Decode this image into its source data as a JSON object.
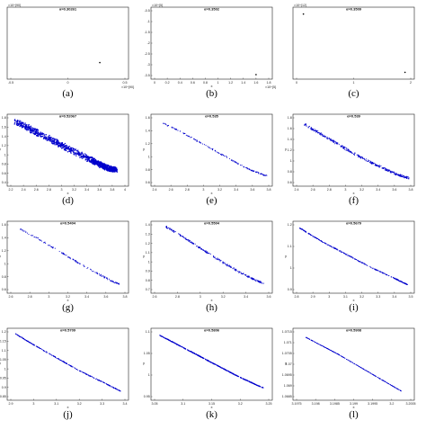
{
  "figure": {
    "panels": [
      {
        "id": "a",
        "caption": "(a)",
        "title": "α=0.30261",
        "exp_y": "×10^{90}",
        "exp_x": "×10^{90}",
        "xlabel": "",
        "ylabel": "",
        "xticks": [
          "-0.5",
          "0",
          "0.5"
        ],
        "yticks": []
      },
      {
        "id": "b",
        "caption": "(b)",
        "title": "α=0.3502",
        "exp_y": "×10^{5}",
        "exp_x": "×10^{5}",
        "xlabel": "x",
        "ylabel": "",
        "xticks": [
          "0",
          "0.2",
          "0.4",
          "0.6",
          "0.8",
          "1",
          "1.2",
          "1.4",
          "1.6",
          "1.8"
        ],
        "yticks": [
          "-0.5",
          "-1",
          "-1.5",
          "-2",
          "-2.5",
          "-3",
          "-3.5"
        ]
      },
      {
        "id": "c",
        "caption": "(c)",
        "title": "α=0.3509",
        "exp_y": "×10^{12}",
        "exp_x": "",
        "xlabel": "",
        "ylabel": "",
        "xticks": [
          "0",
          "1",
          "2"
        ],
        "yticks": []
      },
      {
        "id": "d",
        "caption": "(d)",
        "title": "α=0.52067",
        "exp_y": "",
        "exp_x": "",
        "xlabel": "x",
        "ylabel": "y",
        "xticks": [
          "2.2",
          "2.4",
          "2.6",
          "2.8",
          "3",
          "3.2",
          "3.4",
          "3.6",
          "3.8",
          "4"
        ],
        "yticks": [
          "1.8",
          "1.6",
          "1.4",
          "1.2",
          "1",
          "0.8",
          "0.6",
          "0.4"
        ]
      },
      {
        "id": "e",
        "caption": "(e)",
        "title": "α=0.535",
        "exp_y": "",
        "exp_x": "",
        "xlabel": "x",
        "ylabel": "y",
        "xticks": [
          "2.4",
          "2.6",
          "2.8",
          "3",
          "3.2",
          "3.4",
          "3.6",
          "3.8"
        ],
        "yticks": [
          "1.6",
          "1.4",
          "1.2",
          "1",
          "0.8",
          "0.6"
        ]
      },
      {
        "id": "f",
        "caption": "(f)",
        "title": "α=0.539",
        "exp_y": "",
        "exp_x": "",
        "xlabel": "x",
        "ylabel": "y",
        "xticks": [
          "2.4",
          "2.6",
          "2.8",
          "3",
          "3.2",
          "3.4",
          "3.6",
          "3.8"
        ],
        "yticks": [
          "1.8",
          "1.6",
          "1.4",
          "1.2",
          "1",
          "0.8",
          "0.6"
        ]
      },
      {
        "id": "g",
        "caption": "(g)",
        "title": "α=0.5404",
        "exp_y": "",
        "exp_x": "",
        "xlabel": "x",
        "ylabel": "y",
        "xticks": [
          "2.6",
          "2.8",
          "3",
          "3.2",
          "3.4",
          "3.6",
          "3.8"
        ],
        "yticks": [
          "1.6",
          "1.4",
          "1.2",
          "1",
          "0.8",
          "0.6"
        ]
      },
      {
        "id": "h",
        "caption": "(h)",
        "title": "α=0.5504",
        "exp_y": "",
        "exp_x": "",
        "xlabel": "x",
        "ylabel": "y",
        "xticks": [
          "2.6",
          "2.8",
          "3",
          "3.2",
          "3.4",
          "3.6"
        ],
        "yticks": [
          "1.4",
          "1.3",
          "1.2",
          "1.1",
          "1",
          "0.9",
          "0.8",
          "0.7"
        ]
      },
      {
        "id": "i",
        "caption": "(i)",
        "title": "α=0.5679",
        "exp_y": "",
        "exp_x": "",
        "xlabel": "x",
        "ylabel": "y",
        "xticks": [
          "2.8",
          "2.9",
          "3",
          "3.1",
          "3.2",
          "3.3",
          "3.4",
          "3.5"
        ],
        "yticks": [
          "1.2",
          "1.1",
          "1",
          "0.9"
        ]
      },
      {
        "id": "j",
        "caption": "(j)",
        "title": "α=0.5709",
        "exp_y": "",
        "exp_x": "",
        "xlabel": "x",
        "ylabel": "y",
        "xticks": [
          "2.9",
          "3",
          "3.1",
          "3.2",
          "3.3",
          "3.4"
        ],
        "yticks": [
          "1.2",
          "1.15",
          "1.1",
          "1.05",
          "1",
          "0.95",
          "0.9",
          "0.85"
        ]
      },
      {
        "id": "k",
        "caption": "(k)",
        "title": "α=0.5806",
        "exp_y": "",
        "exp_x": "",
        "xlabel": "x",
        "ylabel": "y",
        "xticks": [
          "3.05",
          "3.1",
          "3.15",
          "3.2",
          "3.25"
        ],
        "yticks": [
          "1.1",
          "1.05",
          "1",
          "0.95"
        ]
      },
      {
        "id": "l",
        "caption": "(l)",
        "title": "α=0.5908",
        "exp_y": "",
        "exp_x": "",
        "xlabel": "x",
        "ylabel": "y",
        "xticks": [
          "3.1975",
          "3.198",
          "3.1985",
          "3.199",
          "3.1995",
          "3.2",
          "3.2005"
        ],
        "yticks": [
          "1.0715",
          "1.071",
          "1.0705",
          "1.07",
          "1.0695",
          "1.069",
          "1.0685"
        ]
      }
    ]
  },
  "chart_data": [
    {
      "panel": "a",
      "type": "scatter",
      "title": "α=0.30261",
      "xlabel": "",
      "ylabel": "",
      "xlim": [
        -0.5,
        0.5
      ],
      "ylim": [
        0,
        1
      ],
      "series": [
        {
          "color": "#000000",
          "x": [
            0.28
          ],
          "y": [
            0.2
          ]
        }
      ]
    },
    {
      "panel": "b",
      "type": "scatter",
      "title": "α=0.3502",
      "xlabel": "x",
      "ylabel": "",
      "xlim": [
        0,
        1.8
      ],
      "ylim": [
        -3.5,
        0
      ],
      "series": [
        {
          "color": "#000000",
          "x": [
            1.6
          ],
          "y": [
            -3.45
          ]
        }
      ]
    },
    {
      "panel": "c",
      "type": "scatter",
      "title": "α=0.3509",
      "xlabel": "",
      "ylabel": "",
      "xlim": [
        0,
        2
      ],
      "ylim": [
        0,
        1
      ],
      "series": [
        {
          "color": "#000000",
          "x": [
            0.12,
            1.9
          ],
          "y": [
            0.95,
            0.05
          ]
        }
      ]
    },
    {
      "panel": "d",
      "type": "scatter",
      "title": "α=0.52067",
      "xlabel": "x",
      "ylabel": "y",
      "xlim": [
        2.2,
        4.0
      ],
      "ylim": [
        0.4,
        1.8
      ],
      "series": [
        {
          "color": "#0000cc",
          "x": [
            2.28,
            2.45,
            2.65,
            2.9,
            3.15,
            3.4,
            3.6,
            3.75,
            3.85
          ],
          "y": [
            1.72,
            1.6,
            1.45,
            1.28,
            1.1,
            0.93,
            0.8,
            0.7,
            0.68
          ]
        }
      ]
    },
    {
      "panel": "e",
      "type": "scatter",
      "title": "α=0.535",
      "xlabel": "x",
      "ylabel": "y",
      "xlim": [
        2.4,
        3.8
      ],
      "ylim": [
        0.6,
        1.6
      ],
      "series": [
        {
          "color": "#0000cc",
          "x": [
            2.5,
            2.7,
            2.9,
            3.1,
            3.3,
            3.5,
            3.65,
            3.78
          ],
          "y": [
            1.52,
            1.4,
            1.26,
            1.12,
            0.98,
            0.84,
            0.76,
            0.7
          ]
        }
      ]
    },
    {
      "panel": "f",
      "type": "scatter",
      "title": "α=0.539",
      "xlabel": "x",
      "ylabel": "y",
      "xlim": [
        2.4,
        3.8
      ],
      "ylim": [
        0.6,
        1.8
      ],
      "series": [
        {
          "color": "#0000cc",
          "x": [
            2.5,
            2.7,
            2.9,
            3.1,
            3.3,
            3.5,
            3.65,
            3.78
          ],
          "y": [
            1.68,
            1.5,
            1.32,
            1.14,
            0.98,
            0.84,
            0.74,
            0.68
          ]
        }
      ]
    },
    {
      "panel": "g",
      "type": "scatter",
      "title": "α=0.5404",
      "xlabel": "x",
      "ylabel": "y",
      "xlim": [
        2.6,
        3.8
      ],
      "ylim": [
        0.6,
        1.6
      ],
      "series": [
        {
          "color": "#0000cc",
          "x": [
            2.68,
            2.9,
            3.1,
            3.3,
            3.5,
            3.65,
            3.75
          ],
          "y": [
            1.55,
            1.38,
            1.2,
            1.02,
            0.86,
            0.74,
            0.68
          ]
        }
      ]
    },
    {
      "panel": "h",
      "type": "scatter",
      "title": "α=0.5504",
      "xlabel": "x",
      "ylabel": "y",
      "xlim": [
        2.6,
        3.6
      ],
      "ylim": [
        0.7,
        1.4
      ],
      "series": [
        {
          "color": "#0000cc",
          "x": [
            2.7,
            2.85,
            3.0,
            3.15,
            3.3,
            3.45,
            3.55
          ],
          "y": [
            1.38,
            1.27,
            1.15,
            1.03,
            0.92,
            0.82,
            0.77
          ]
        }
      ]
    },
    {
      "panel": "i",
      "type": "scatter",
      "title": "α=0.5679",
      "xlabel": "x",
      "ylabel": "y",
      "xlim": [
        2.8,
        3.5
      ],
      "ylim": [
        0.85,
        1.25
      ],
      "series": [
        {
          "color": "#0000cc",
          "x": [
            2.82,
            2.95,
            3.1,
            3.25,
            3.4,
            3.48
          ],
          "y": [
            1.23,
            1.15,
            1.07,
            0.99,
            0.92,
            0.88
          ]
        }
      ]
    },
    {
      "panel": "j",
      "type": "scatter",
      "title": "α=0.5709",
      "xlabel": "x",
      "ylabel": "y",
      "xlim": [
        2.9,
        3.4
      ],
      "ylim": [
        0.85,
        1.2
      ],
      "series": [
        {
          "color": "#0000cc",
          "x": [
            2.92,
            3.0,
            3.1,
            3.2,
            3.3,
            3.38
          ],
          "y": [
            1.19,
            1.13,
            1.06,
            0.99,
            0.93,
            0.88
          ]
        }
      ]
    },
    {
      "panel": "k",
      "type": "scatter",
      "title": "α=0.5806",
      "xlabel": "x",
      "ylabel": "y",
      "xlim": [
        3.04,
        3.26
      ],
      "ylim": [
        0.93,
        1.12
      ],
      "series": [
        {
          "color": "#0000cc",
          "x": [
            3.05,
            3.1,
            3.15,
            3.2,
            3.25
          ],
          "y": [
            1.11,
            1.07,
            1.03,
            0.99,
            0.955
          ]
        }
      ]
    },
    {
      "panel": "l",
      "type": "scatter",
      "title": "α=0.5908",
      "xlabel": "x",
      "ylabel": "y",
      "xlim": [
        3.1972,
        3.2008
      ],
      "ylim": [
        1.0683,
        1.0718
      ],
      "series": [
        {
          "color": "#0000cc",
          "x": [
            3.1975,
            3.1985,
            3.1995,
            3.2005
          ],
          "y": [
            1.0715,
            1.0706,
            1.0696,
            1.0686
          ]
        }
      ]
    }
  ]
}
